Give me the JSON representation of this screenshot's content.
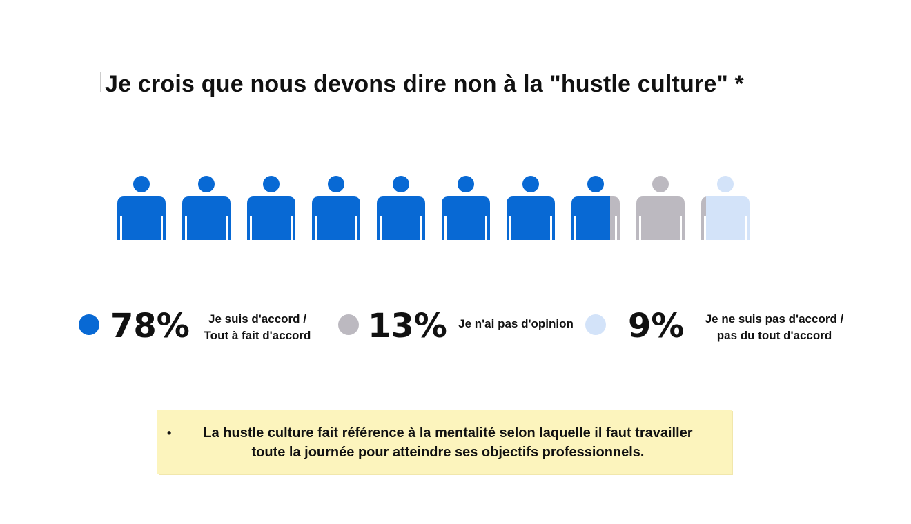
{
  "chart_data": {
    "type": "pictogram",
    "title": "Je crois que nous devons dire non à la \"hustle culture\" *",
    "total_icons": 10,
    "series": [
      {
        "name": "Je suis d'accord / Tout à fait d'accord",
        "value": 78,
        "label": "78%",
        "color": "#0869d4",
        "label_lines": [
          "Je suis d'accord /",
          "Tout à fait d'accord"
        ]
      },
      {
        "name": "Je n'ai pas d'opinion",
        "value": 13,
        "label": "13%",
        "color": "#bcb9c0",
        "label_lines": [
          "Je n'ai pas d'opinion"
        ]
      },
      {
        "name": "Je ne suis pas d'accord / pas du tout d'accord",
        "value": 9,
        "label": "9%",
        "color": "#d3e3f9",
        "label_lines": [
          "Je ne suis pas d'accord /",
          "pas du tout d'accord"
        ]
      }
    ]
  },
  "note": {
    "bullet": "•",
    "text": "La hustle culture fait référence à la mentalité selon laquelle il faut travailler toute la journée pour atteindre ses objectifs professionnels."
  }
}
